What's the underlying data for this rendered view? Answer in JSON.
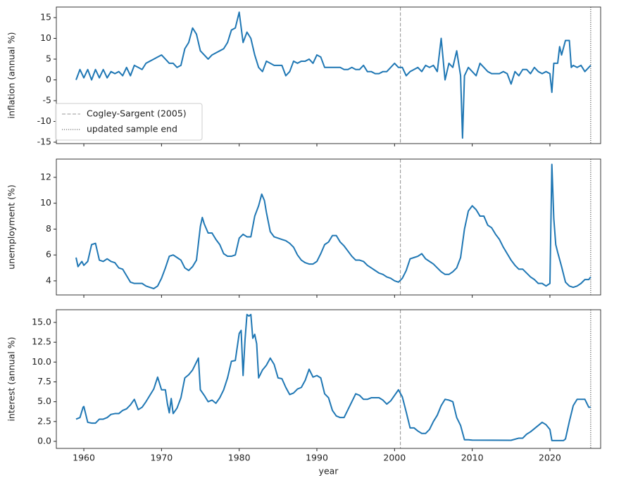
{
  "chart_data": [
    {
      "type": "line",
      "ylabel": "inflation (annual %)",
      "x": [
        1959,
        1959.5,
        1960,
        1960.5,
        1961,
        1961.5,
        1962,
        1962.5,
        1963,
        1963.5,
        1964,
        1964.5,
        1965,
        1965.5,
        1966,
        1966.5,
        1967,
        1967.5,
        1968,
        1968.5,
        1969,
        1969.5,
        1970,
        1970.5,
        1971,
        1971.5,
        1972,
        1972.5,
        1973,
        1973.5,
        1974,
        1974.5,
        1975,
        1975.5,
        1976,
        1976.5,
        1977,
        1977.5,
        1978,
        1978.5,
        1979,
        1979.5,
        1980,
        1980.5,
        1981,
        1981.5,
        1982,
        1982.5,
        1983,
        1983.5,
        1984,
        1984.5,
        1985,
        1985.5,
        1986,
        1986.5,
        1987,
        1987.5,
        1988,
        1988.5,
        1989,
        1989.5,
        1990,
        1990.5,
        1991,
        1991.5,
        1992,
        1992.5,
        1993,
        1993.5,
        1994,
        1994.5,
        1995,
        1995.5,
        1996,
        1996.5,
        1997,
        1997.5,
        1998,
        1998.5,
        1999,
        1999.5,
        2000,
        2000.5,
        2001,
        2001.5,
        2002,
        2002.5,
        2003,
        2003.5,
        2004,
        2004.5,
        2005,
        2005.5,
        2006,
        2006.5,
        2007,
        2007.5,
        2008,
        2008.5,
        2008.75,
        2009,
        2009.5,
        2010,
        2010.5,
        2011,
        2011.5,
        2012,
        2012.5,
        2013,
        2013.5,
        2014,
        2014.5,
        2015,
        2015.5,
        2016,
        2016.5,
        2017,
        2017.5,
        2018,
        2018.5,
        2019,
        2019.5,
        2020,
        2020.25,
        2020.5,
        2021,
        2021.25,
        2021.5,
        2022,
        2022.5,
        2022.75,
        2023,
        2023.5,
        2024,
        2024.5,
        2025,
        2025.25
      ],
      "series": [
        {
          "color": "#1f77b4",
          "values": [
            0,
            2.5,
            0.5,
            2.5,
            0,
            2.5,
            0.5,
            2.5,
            0.5,
            2,
            1.5,
            2,
            1,
            3,
            1,
            3.5,
            3,
            2.5,
            4,
            4.5,
            5,
            5.5,
            6,
            5,
            4,
            4,
            3,
            3.5,
            7.5,
            9,
            12.5,
            11,
            7,
            6,
            5,
            6,
            6.5,
            7,
            7.5,
            9,
            12,
            12.5,
            16.3,
            9,
            11.5,
            10,
            6,
            3,
            2,
            4.5,
            4,
            3.5,
            3.5,
            3.5,
            1,
            2,
            4.5,
            4,
            4.5,
            4.5,
            5,
            4,
            6,
            5.5,
            3,
            3,
            3,
            3,
            3,
            2.5,
            2.5,
            3,
            2.5,
            2.5,
            3.5,
            2,
            2,
            1.5,
            1.5,
            2,
            2,
            3,
            4,
            3,
            3,
            1,
            2,
            2.5,
            3,
            2,
            3.5,
            3,
            3.5,
            2,
            10,
            0,
            4,
            3,
            7,
            1,
            -14,
            1,
            3,
            2,
            1,
            4,
            3,
            2,
            1.5,
            1.5,
            1.5,
            2,
            1.5,
            -1,
            2,
            1,
            2.5,
            2.5,
            1.5,
            3,
            2,
            1.5,
            2,
            1.5,
            -3,
            4,
            4,
            8,
            6,
            9.5,
            9.5,
            3,
            3.5,
            3,
            3.5,
            2,
            3,
            3.5
          ]
        }
      ],
      "xlim": [
        1956.46,
        2026.53
      ],
      "xticks": [
        1960,
        1970,
        1980,
        1990,
        2000,
        2010,
        2020
      ],
      "ylim": [
        -15.34,
        17.54
      ],
      "yticks": [
        -15,
        -10,
        -5,
        0,
        5,
        10,
        15
      ],
      "vlines": [
        {
          "name": "Cogley-Sargent (2005)",
          "x": 2000.75,
          "color": "#999999",
          "style": "dashed"
        },
        {
          "name": "updated sample end",
          "x": 2025.25,
          "color": "#555555",
          "style": "dotted"
        }
      ]
    },
    {
      "type": "line",
      "ylabel": "unemployment (%)",
      "x": [
        1959,
        1959.25,
        1959.75,
        1960,
        1960.5,
        1961,
        1961.5,
        1962,
        1962.5,
        1963,
        1963.5,
        1964,
        1964.5,
        1965,
        1965.5,
        1966,
        1966.5,
        1967,
        1967.5,
        1968,
        1968.5,
        1969,
        1969.5,
        1970,
        1970.5,
        1971,
        1971.5,
        1972,
        1972.5,
        1973,
        1973.5,
        1974,
        1974.5,
        1975,
        1975.25,
        1975.5,
        1976,
        1976.5,
        1977,
        1977.5,
        1978,
        1978.5,
        1979,
        1979.5,
        1980,
        1980.5,
        1981,
        1981.5,
        1982,
        1982.5,
        1982.9,
        1983.25,
        1983.5,
        1984,
        1984.5,
        1985,
        1985.5,
        1986,
        1986.5,
        1987,
        1987.5,
        1988,
        1988.5,
        1989,
        1989.5,
        1990,
        1990.5,
        1991,
        1991.5,
        1992,
        1992.5,
        1993,
        1993.5,
        1994,
        1994.5,
        1995,
        1995.5,
        1996,
        1996.5,
        1997,
        1997.5,
        1998,
        1998.5,
        1999,
        1999.5,
        2000,
        2000.5,
        2001,
        2001.5,
        2002,
        2002.5,
        2003,
        2003.5,
        2004,
        2004.5,
        2005,
        2005.5,
        2006,
        2006.5,
        2007,
        2007.5,
        2008,
        2008.5,
        2009,
        2009.5,
        2010,
        2010.5,
        2011,
        2011.5,
        2012,
        2012.5,
        2013,
        2013.5,
        2014,
        2014.5,
        2015,
        2015.5,
        2016,
        2016.5,
        2017,
        2017.5,
        2018,
        2018.5,
        2019,
        2019.5,
        2020,
        2020.25,
        2020.5,
        2020.75,
        2021,
        2021.5,
        2022,
        2022.5,
        2023,
        2023.5,
        2024,
        2024.5,
        2025,
        2025.25
      ],
      "series": [
        {
          "color": "#1f77b4",
          "values": [
            5.8,
            5.1,
            5.5,
            5.2,
            5.5,
            6.8,
            6.9,
            5.6,
            5.5,
            5.7,
            5.5,
            5.4,
            5,
            4.9,
            4.4,
            3.9,
            3.8,
            3.8,
            3.8,
            3.6,
            3.5,
            3.4,
            3.6,
            4.2,
            5,
            5.9,
            6,
            5.8,
            5.6,
            5,
            4.8,
            5.1,
            5.6,
            8.2,
            8.9,
            8.4,
            7.7,
            7.7,
            7.2,
            6.8,
            6.1,
            5.9,
            5.9,
            6,
            7.3,
            7.6,
            7.4,
            7.4,
            9,
            9.8,
            10.7,
            10.2,
            9.3,
            7.8,
            7.4,
            7.3,
            7.2,
            7.1,
            6.9,
            6.6,
            6,
            5.6,
            5.4,
            5.3,
            5.3,
            5.5,
            6.1,
            6.8,
            7,
            7.5,
            7.5,
            7,
            6.7,
            6.3,
            5.9,
            5.6,
            5.6,
            5.5,
            5.2,
            5,
            4.8,
            4.6,
            4.5,
            4.3,
            4.2,
            4,
            3.9,
            4.2,
            4.8,
            5.7,
            5.8,
            5.9,
            6.1,
            5.7,
            5.5,
            5.3,
            5,
            4.7,
            4.5,
            4.5,
            4.7,
            5,
            5.8,
            8,
            9.4,
            9.8,
            9.5,
            9,
            9,
            8.3,
            8.1,
            7.6,
            7.2,
            6.6,
            6.1,
            5.6,
            5.2,
            4.9,
            4.9,
            4.6,
            4.3,
            4.1,
            3.8,
            3.8,
            3.6,
            3.8,
            13,
            8.8,
            6.8,
            6.2,
            5.1,
            3.9,
            3.6,
            3.5,
            3.6,
            3.8,
            4.1,
            4.1,
            4.3
          ]
        }
      ],
      "xlim": [
        1956.46,
        2026.53
      ],
      "xticks": [
        1960,
        1970,
        1980,
        1990,
        2000,
        2010,
        2020
      ],
      "ylim": [
        2.91,
        13.41
      ],
      "yticks": [
        4,
        6,
        8,
        10,
        12
      ],
      "vlines": [
        {
          "x": 2000.75,
          "color": "#999999",
          "style": "dashed"
        },
        {
          "x": 2025.25,
          "color": "#555555",
          "style": "dotted"
        }
      ]
    },
    {
      "type": "line",
      "ylabel": "interest (annual %)",
      "xlabel": "year",
      "x": [
        1959,
        1959.5,
        1959.9,
        1960,
        1960.5,
        1961,
        1961.5,
        1962,
        1962.5,
        1963,
        1963.5,
        1964,
        1964.5,
        1965,
        1965.5,
        1966,
        1966.5,
        1967,
        1967.5,
        1968,
        1968.5,
        1969,
        1969.5,
        1970,
        1970.5,
        1970.75,
        1971,
        1971.25,
        1971.5,
        1972,
        1972.5,
        1973,
        1973.5,
        1974,
        1974.25,
        1974.75,
        1975,
        1975.5,
        1976,
        1976.5,
        1977,
        1977.5,
        1978,
        1978.5,
        1979,
        1979.5,
        1980,
        1980.25,
        1980.5,
        1980.75,
        1981,
        1981.25,
        1981.5,
        1981.75,
        1982,
        1982.25,
        1982.5,
        1983,
        1983.5,
        1984,
        1984.5,
        1985,
        1985.5,
        1986,
        1986.5,
        1987,
        1987.5,
        1988,
        1988.5,
        1989,
        1989.5,
        1990,
        1990.5,
        1991,
        1991.5,
        1992,
        1992.5,
        1993,
        1993.5,
        1994,
        1994.5,
        1995,
        1995.5,
        1996,
        1996.5,
        1997,
        1997.5,
        1998,
        1998.5,
        1999,
        1999.5,
        2000,
        2000.5,
        2001,
        2001.5,
        2002,
        2002.5,
        2003,
        2003.5,
        2004,
        2004.5,
        2005,
        2005.5,
        2006,
        2006.5,
        2007,
        2007.5,
        2008,
        2008.5,
        2009,
        2009.5,
        2010,
        2015,
        2016,
        2016.5,
        2017,
        2017.5,
        2018,
        2018.5,
        2019,
        2019.5,
        2020,
        2020.25,
        2021,
        2021.75,
        2022,
        2022.5,
        2023,
        2023.5,
        2024,
        2024.5,
        2025,
        2025.25
      ],
      "series": [
        {
          "color": "#1f77b4",
          "values": [
            2.8,
            3,
            4.3,
            4.4,
            2.4,
            2.3,
            2.3,
            2.8,
            2.8,
            3,
            3.4,
            3.5,
            3.5,
            3.9,
            4.1,
            4.6,
            5.3,
            4,
            4.3,
            5,
            5.8,
            6.6,
            8.1,
            6.5,
            6.5,
            4.8,
            3.6,
            5.4,
            3.5,
            4.2,
            5.5,
            8,
            8.4,
            9,
            9.5,
            10.5,
            6.5,
            5.8,
            5,
            5.2,
            4.8,
            5.5,
            6.5,
            8,
            10.1,
            10.2,
            13.6,
            14,
            8.3,
            12.8,
            16,
            15.8,
            16,
            13,
            13.5,
            12.3,
            8,
            9,
            9.6,
            10.5,
            9.7,
            8,
            7.9,
            6.8,
            5.9,
            6.1,
            6.6,
            6.8,
            7.7,
            9.1,
            8.1,
            8.3,
            8,
            6,
            5.5,
            3.9,
            3.2,
            3,
            3,
            4,
            5,
            6,
            5.8,
            5.3,
            5.3,
            5.5,
            5.5,
            5.5,
            5.2,
            4.7,
            5.1,
            5.8,
            6.5,
            5.6,
            3.7,
            1.7,
            1.7,
            1.3,
            1,
            1,
            1.5,
            2.5,
            3.3,
            4.5,
            5.3,
            5.2,
            5,
            3,
            2,
            0.2,
            0.2,
            0.15,
            0.13,
            0.4,
            0.4,
            0.9,
            1.2,
            1.6,
            2,
            2.4,
            2.1,
            1.5,
            0.1,
            0.1,
            0.1,
            0.3,
            2.5,
            4.5,
            5.3,
            5.3,
            5.3,
            4.3,
            4.3
          ]
        }
      ],
      "xlim": [
        1956.46,
        2026.53
      ],
      "xticks": [
        1960,
        1970,
        1980,
        1990,
        2000,
        2010,
        2020
      ],
      "ylim": [
        -0.89,
        16.6
      ],
      "yticks": [
        {
          "value": 0,
          "label": "0.0"
        },
        2.5,
        {
          "value": 5,
          "label": "5.0"
        },
        7.5,
        {
          "value": 10,
          "label": "10.0"
        },
        12.5,
        {
          "value": 15,
          "label": "15.0"
        }
      ],
      "vlines": [
        {
          "x": 2000.75,
          "color": "#999999",
          "style": "dashed"
        },
        {
          "x": 2025.25,
          "color": "#555555",
          "style": "dotted"
        }
      ]
    }
  ]
}
